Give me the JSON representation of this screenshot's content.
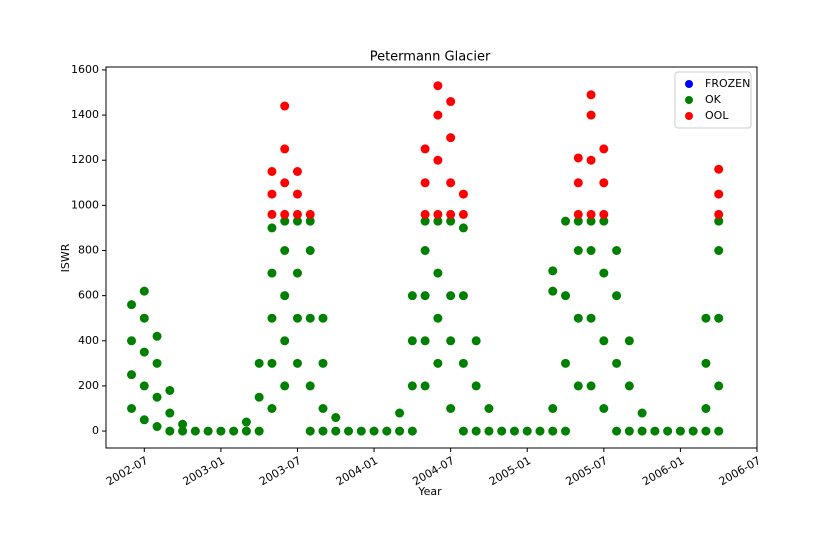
{
  "chart_data": {
    "type": "scatter",
    "title": "Petermann Glacier",
    "x_label": "Year",
    "y_label": "ISWR",
    "xlim": [
      "2002-04",
      "2006-07"
    ],
    "xticks": [
      "2002-07",
      "2003-01",
      "2003-07",
      "2004-01",
      "2004-07",
      "2005-01",
      "2005-07",
      "2006-01",
      "2006-07"
    ],
    "ylim": [
      -75,
      1613
    ],
    "yticks": [
      0,
      200,
      400,
      600,
      800,
      1000,
      1200,
      1400,
      1600
    ],
    "legend": "upper right",
    "series": [
      {
        "name": "FROZEN",
        "color": "#0000ff",
        "x": [],
        "values": []
      },
      {
        "name": "OK",
        "color": "#008000",
        "x": [
          "2002-06",
          "2002-06",
          "2002-06",
          "2002-06",
          "2002-07",
          "2002-07",
          "2002-07",
          "2002-07",
          "2002-07",
          "2002-08",
          "2002-08",
          "2002-08",
          "2002-08",
          "2002-09",
          "2002-09",
          "2002-09",
          "2002-10",
          "2002-10",
          "2002-11",
          "2002-12",
          "2003-01",
          "2003-02",
          "2003-03",
          "2003-03",
          "2003-04",
          "2003-04",
          "2003-04",
          "2003-05",
          "2003-05",
          "2003-05",
          "2003-05",
          "2003-05",
          "2003-06",
          "2003-06",
          "2003-06",
          "2003-06",
          "2003-06",
          "2003-07",
          "2003-07",
          "2003-07",
          "2003-07",
          "2003-08",
          "2003-08",
          "2003-08",
          "2003-08",
          "2003-08",
          "2003-09",
          "2003-09",
          "2003-09",
          "2003-09",
          "2003-10",
          "2003-10",
          "2003-11",
          "2003-12",
          "2004-01",
          "2004-02",
          "2004-03",
          "2004-03",
          "2004-04",
          "2004-04",
          "2004-04",
          "2004-04",
          "2004-05",
          "2004-05",
          "2004-05",
          "2004-05",
          "2004-05",
          "2004-06",
          "2004-06",
          "2004-06",
          "2004-06",
          "2004-07",
          "2004-07",
          "2004-07",
          "2004-07",
          "2004-08",
          "2004-08",
          "2004-08",
          "2004-08",
          "2004-09",
          "2004-09",
          "2004-09",
          "2004-10",
          "2004-10",
          "2004-11",
          "2004-12",
          "2005-01",
          "2005-02",
          "2005-03",
          "2005-03",
          "2005-03",
          "2005-03",
          "2005-04",
          "2005-04",
          "2005-04",
          "2005-04",
          "2005-05",
          "2005-05",
          "2005-05",
          "2005-05",
          "2005-06",
          "2005-06",
          "2005-06",
          "2005-06",
          "2005-07",
          "2005-07",
          "2005-07",
          "2005-07",
          "2005-08",
          "2005-08",
          "2005-08",
          "2005-08",
          "2005-09",
          "2005-09",
          "2005-09",
          "2005-10",
          "2005-10",
          "2005-11",
          "2005-12",
          "2006-01",
          "2006-02",
          "2006-03",
          "2006-03",
          "2006-03",
          "2006-03",
          "2006-04",
          "2006-04",
          "2006-04",
          "2006-04",
          "2006-04"
        ],
        "values": [
          100,
          250,
          400,
          560,
          50,
          200,
          350,
          500,
          620,
          20,
          150,
          300,
          420,
          0,
          80,
          180,
          0,
          30,
          0,
          0,
          0,
          0,
          0,
          40,
          0,
          150,
          300,
          100,
          300,
          500,
          700,
          900,
          200,
          400,
          600,
          800,
          930,
          300,
          500,
          700,
          930,
          0,
          200,
          500,
          800,
          930,
          0,
          100,
          300,
          500,
          0,
          60,
          0,
          0,
          0,
          0,
          0,
          80,
          0,
          200,
          400,
          600,
          200,
          400,
          600,
          800,
          930,
          300,
          500,
          700,
          930,
          100,
          400,
          600,
          930,
          0,
          300,
          600,
          900,
          0,
          200,
          400,
          0,
          100,
          0,
          0,
          0,
          0,
          0,
          100,
          620,
          710,
          0,
          300,
          600,
          930,
          200,
          500,
          800,
          930,
          200,
          500,
          800,
          930,
          100,
          400,
          700,
          930,
          0,
          300,
          600,
          800,
          0,
          200,
          400,
          0,
          80,
          0,
          0,
          0,
          0,
          0,
          100,
          300,
          500,
          0,
          200,
          500,
          800,
          930
        ]
      },
      {
        "name": "OOL",
        "color": "#ff0000",
        "x": [
          "2003-05",
          "2003-05",
          "2003-05",
          "2003-06",
          "2003-06",
          "2003-06",
          "2003-06",
          "2003-07",
          "2003-07",
          "2003-07",
          "2003-08",
          "2004-05",
          "2004-05",
          "2004-05",
          "2004-06",
          "2004-06",
          "2004-06",
          "2004-06",
          "2004-07",
          "2004-07",
          "2004-07",
          "2004-07",
          "2004-08",
          "2004-08",
          "2005-05",
          "2005-05",
          "2005-05",
          "2005-06",
          "2005-06",
          "2005-06",
          "2005-06",
          "2005-07",
          "2005-07",
          "2005-07",
          "2006-04",
          "2006-04",
          "2006-04"
        ],
        "values": [
          960,
          1050,
          1150,
          960,
          1100,
          1250,
          1440,
          960,
          1050,
          1150,
          960,
          960,
          1100,
          1250,
          960,
          1200,
          1400,
          1530,
          960,
          1100,
          1300,
          1460,
          960,
          1050,
          960,
          1100,
          1210,
          960,
          1200,
          1400,
          1490,
          960,
          1100,
          1250,
          960,
          1050,
          1160
        ]
      }
    ]
  }
}
